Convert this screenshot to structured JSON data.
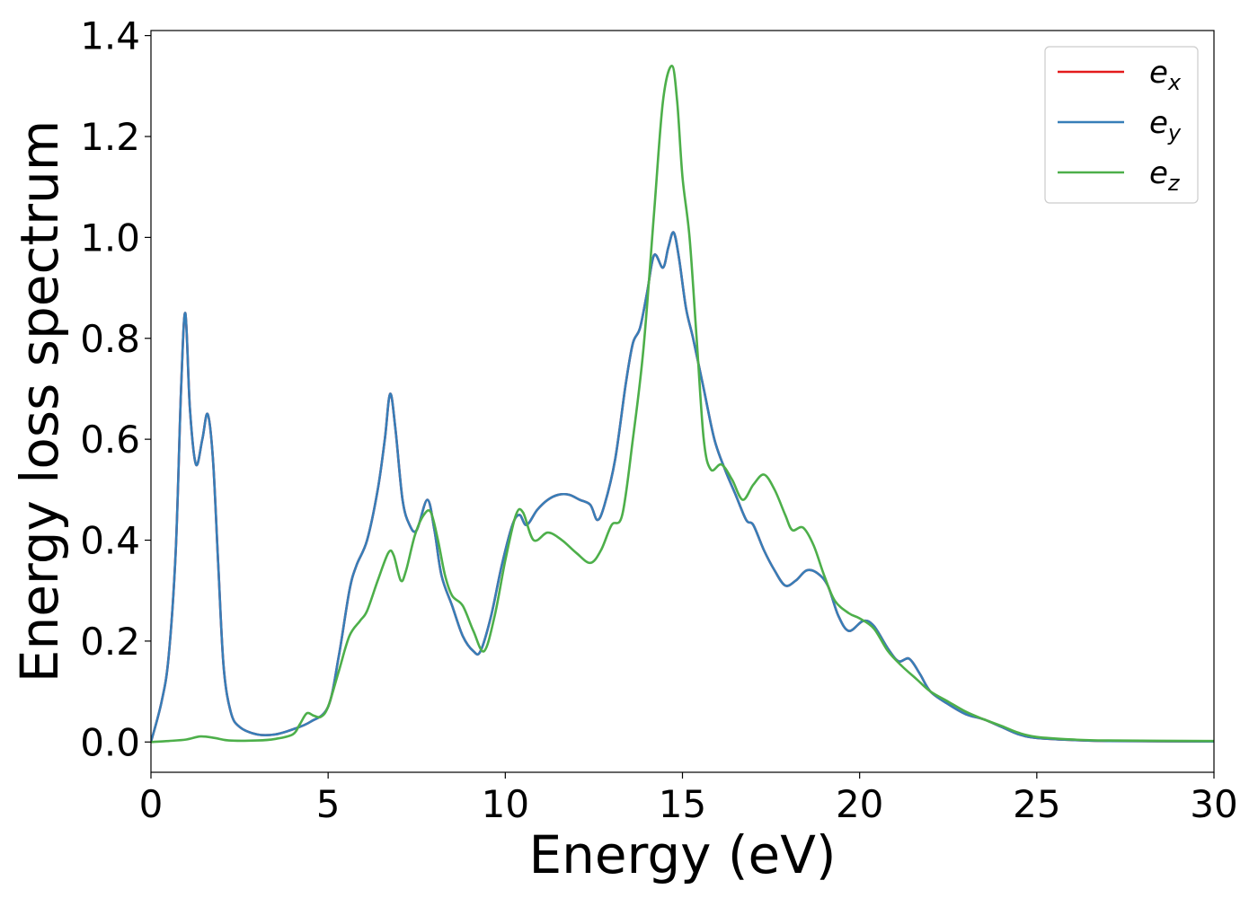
{
  "chart_data": {
    "type": "line",
    "xlabel": "Energy (eV)",
    "ylabel": "Energy loss spectrum",
    "xlim": [
      0,
      30
    ],
    "ylim": [
      -0.06,
      1.41
    ],
    "xticks": [
      0,
      5,
      10,
      15,
      20,
      25,
      30
    ],
    "yticks": [
      0.0,
      0.2,
      0.4,
      0.6,
      0.8,
      1.0,
      1.2,
      1.4
    ],
    "xtick_labels": [
      "0",
      "5",
      "10",
      "15",
      "20",
      "25",
      "30"
    ],
    "ytick_labels": [
      "0.0",
      "0.2",
      "0.4",
      "0.6",
      "0.8",
      "1.0",
      "1.2",
      "1.4"
    ],
    "grid": false,
    "legend_position": "top-right",
    "series": [
      {
        "name": "e_x",
        "label_base": "e",
        "label_sub": "x",
        "color": "#e41a1c",
        "points": [
          [
            0,
            0
          ],
          [
            0.3,
            0.08
          ],
          [
            0.5,
            0.17
          ],
          [
            0.7,
            0.38
          ],
          [
            0.85,
            0.7
          ],
          [
            0.97,
            0.85
          ],
          [
            1.1,
            0.66
          ],
          [
            1.27,
            0.55
          ],
          [
            1.45,
            0.6
          ],
          [
            1.6,
            0.65
          ],
          [
            1.75,
            0.56
          ],
          [
            1.9,
            0.35
          ],
          [
            2.05,
            0.15
          ],
          [
            2.25,
            0.06
          ],
          [
            2.5,
            0.03
          ],
          [
            3.0,
            0.015
          ],
          [
            3.5,
            0.015
          ],
          [
            4.0,
            0.025
          ],
          [
            4.5,
            0.04
          ],
          [
            5.0,
            0.07
          ],
          [
            5.3,
            0.17
          ],
          [
            5.6,
            0.3
          ],
          [
            5.8,
            0.35
          ],
          [
            6.1,
            0.4
          ],
          [
            6.4,
            0.5
          ],
          [
            6.6,
            0.6
          ],
          [
            6.75,
            0.69
          ],
          [
            6.9,
            0.62
          ],
          [
            7.1,
            0.48
          ],
          [
            7.3,
            0.43
          ],
          [
            7.5,
            0.42
          ],
          [
            7.8,
            0.48
          ],
          [
            8.0,
            0.42
          ],
          [
            8.2,
            0.33
          ],
          [
            8.5,
            0.27
          ],
          [
            8.8,
            0.21
          ],
          [
            9.1,
            0.18
          ],
          [
            9.3,
            0.18
          ],
          [
            9.6,
            0.25
          ],
          [
            9.9,
            0.35
          ],
          [
            10.2,
            0.43
          ],
          [
            10.4,
            0.45
          ],
          [
            10.6,
            0.43
          ],
          [
            10.9,
            0.46
          ],
          [
            11.2,
            0.48
          ],
          [
            11.5,
            0.49
          ],
          [
            11.8,
            0.49
          ],
          [
            12.1,
            0.48
          ],
          [
            12.4,
            0.47
          ],
          [
            12.6,
            0.44
          ],
          [
            12.8,
            0.47
          ],
          [
            13.1,
            0.56
          ],
          [
            13.4,
            0.71
          ],
          [
            13.6,
            0.79
          ],
          [
            13.8,
            0.82
          ],
          [
            14.0,
            0.89
          ],
          [
            14.2,
            0.965
          ],
          [
            14.45,
            0.94
          ],
          [
            14.6,
            0.98
          ],
          [
            14.75,
            1.01
          ],
          [
            14.9,
            0.96
          ],
          [
            15.1,
            0.86
          ],
          [
            15.3,
            0.8
          ],
          [
            15.6,
            0.7
          ],
          [
            15.9,
            0.6
          ],
          [
            16.2,
            0.54
          ],
          [
            16.5,
            0.49
          ],
          [
            16.8,
            0.44
          ],
          [
            17.0,
            0.43
          ],
          [
            17.3,
            0.38
          ],
          [
            17.6,
            0.34
          ],
          [
            17.9,
            0.31
          ],
          [
            18.2,
            0.32
          ],
          [
            18.5,
            0.34
          ],
          [
            18.8,
            0.335
          ],
          [
            19.1,
            0.31
          ],
          [
            19.4,
            0.25
          ],
          [
            19.7,
            0.22
          ],
          [
            20.1,
            0.24
          ],
          [
            20.4,
            0.23
          ],
          [
            20.8,
            0.185
          ],
          [
            21.1,
            0.16
          ],
          [
            21.4,
            0.165
          ],
          [
            21.7,
            0.135
          ],
          [
            22.0,
            0.1
          ],
          [
            22.5,
            0.075
          ],
          [
            23.0,
            0.055
          ],
          [
            23.5,
            0.045
          ],
          [
            24.0,
            0.03
          ],
          [
            24.5,
            0.015
          ],
          [
            25.0,
            0.008
          ],
          [
            26.0,
            0.004
          ],
          [
            27.0,
            0.002
          ],
          [
            30.0,
            0.001
          ]
        ]
      },
      {
        "name": "e_y",
        "label_base": "e",
        "label_sub": "y",
        "color": "#377eb8",
        "points": [
          [
            0,
            0
          ],
          [
            0.3,
            0.08
          ],
          [
            0.5,
            0.17
          ],
          [
            0.7,
            0.38
          ],
          [
            0.85,
            0.7
          ],
          [
            0.97,
            0.85
          ],
          [
            1.1,
            0.66
          ],
          [
            1.27,
            0.55
          ],
          [
            1.45,
            0.6
          ],
          [
            1.6,
            0.65
          ],
          [
            1.75,
            0.56
          ],
          [
            1.9,
            0.35
          ],
          [
            2.05,
            0.15
          ],
          [
            2.25,
            0.06
          ],
          [
            2.5,
            0.03
          ],
          [
            3.0,
            0.015
          ],
          [
            3.5,
            0.015
          ],
          [
            4.0,
            0.025
          ],
          [
            4.5,
            0.04
          ],
          [
            5.0,
            0.07
          ],
          [
            5.3,
            0.17
          ],
          [
            5.6,
            0.3
          ],
          [
            5.8,
            0.35
          ],
          [
            6.1,
            0.4
          ],
          [
            6.4,
            0.5
          ],
          [
            6.6,
            0.6
          ],
          [
            6.75,
            0.69
          ],
          [
            6.9,
            0.62
          ],
          [
            7.1,
            0.48
          ],
          [
            7.3,
            0.43
          ],
          [
            7.5,
            0.42
          ],
          [
            7.8,
            0.48
          ],
          [
            8.0,
            0.42
          ],
          [
            8.2,
            0.33
          ],
          [
            8.5,
            0.27
          ],
          [
            8.8,
            0.21
          ],
          [
            9.1,
            0.18
          ],
          [
            9.3,
            0.18
          ],
          [
            9.6,
            0.25
          ],
          [
            9.9,
            0.35
          ],
          [
            10.2,
            0.43
          ],
          [
            10.4,
            0.45
          ],
          [
            10.6,
            0.43
          ],
          [
            10.9,
            0.46
          ],
          [
            11.2,
            0.48
          ],
          [
            11.5,
            0.49
          ],
          [
            11.8,
            0.49
          ],
          [
            12.1,
            0.48
          ],
          [
            12.4,
            0.47
          ],
          [
            12.6,
            0.44
          ],
          [
            12.8,
            0.47
          ],
          [
            13.1,
            0.56
          ],
          [
            13.4,
            0.71
          ],
          [
            13.6,
            0.79
          ],
          [
            13.8,
            0.82
          ],
          [
            14.0,
            0.89
          ],
          [
            14.2,
            0.965
          ],
          [
            14.45,
            0.94
          ],
          [
            14.6,
            0.98
          ],
          [
            14.75,
            1.01
          ],
          [
            14.9,
            0.96
          ],
          [
            15.1,
            0.86
          ],
          [
            15.3,
            0.8
          ],
          [
            15.6,
            0.7
          ],
          [
            15.9,
            0.6
          ],
          [
            16.2,
            0.54
          ],
          [
            16.5,
            0.49
          ],
          [
            16.8,
            0.44
          ],
          [
            17.0,
            0.43
          ],
          [
            17.3,
            0.38
          ],
          [
            17.6,
            0.34
          ],
          [
            17.9,
            0.31
          ],
          [
            18.2,
            0.32
          ],
          [
            18.5,
            0.34
          ],
          [
            18.8,
            0.335
          ],
          [
            19.1,
            0.31
          ],
          [
            19.4,
            0.25
          ],
          [
            19.7,
            0.22
          ],
          [
            20.1,
            0.24
          ],
          [
            20.4,
            0.23
          ],
          [
            20.8,
            0.185
          ],
          [
            21.1,
            0.16
          ],
          [
            21.4,
            0.165
          ],
          [
            21.7,
            0.135
          ],
          [
            22.0,
            0.1
          ],
          [
            22.5,
            0.075
          ],
          [
            23.0,
            0.055
          ],
          [
            23.5,
            0.045
          ],
          [
            24.0,
            0.03
          ],
          [
            24.5,
            0.015
          ],
          [
            25.0,
            0.008
          ],
          [
            26.0,
            0.004
          ],
          [
            27.0,
            0.002
          ],
          [
            30.0,
            0.001
          ]
        ]
      },
      {
        "name": "e_z",
        "label_base": "e",
        "label_sub": "z",
        "color": "#4daf4a",
        "points": [
          [
            0,
            0
          ],
          [
            0.5,
            0.002
          ],
          [
            1.0,
            0.005
          ],
          [
            1.4,
            0.011
          ],
          [
            1.8,
            0.008
          ],
          [
            2.2,
            0.003
          ],
          [
            3.0,
            0.003
          ],
          [
            3.5,
            0.006
          ],
          [
            4.0,
            0.015
          ],
          [
            4.2,
            0.035
          ],
          [
            4.4,
            0.057
          ],
          [
            4.6,
            0.052
          ],
          [
            4.8,
            0.05
          ],
          [
            5.0,
            0.07
          ],
          [
            5.3,
            0.14
          ],
          [
            5.6,
            0.21
          ],
          [
            5.9,
            0.24
          ],
          [
            6.1,
            0.26
          ],
          [
            6.4,
            0.32
          ],
          [
            6.7,
            0.375
          ],
          [
            6.85,
            0.37
          ],
          [
            7.05,
            0.32
          ],
          [
            7.2,
            0.34
          ],
          [
            7.45,
            0.41
          ],
          [
            7.7,
            0.45
          ],
          [
            7.9,
            0.455
          ],
          [
            8.1,
            0.4
          ],
          [
            8.3,
            0.33
          ],
          [
            8.5,
            0.29
          ],
          [
            8.8,
            0.27
          ],
          [
            9.1,
            0.22
          ],
          [
            9.4,
            0.18
          ],
          [
            9.7,
            0.25
          ],
          [
            10.0,
            0.36
          ],
          [
            10.3,
            0.45
          ],
          [
            10.5,
            0.455
          ],
          [
            10.8,
            0.4
          ],
          [
            11.2,
            0.415
          ],
          [
            11.6,
            0.4
          ],
          [
            12.0,
            0.375
          ],
          [
            12.4,
            0.355
          ],
          [
            12.7,
            0.38
          ],
          [
            13.0,
            0.43
          ],
          [
            13.3,
            0.45
          ],
          [
            13.6,
            0.6
          ],
          [
            13.9,
            0.78
          ],
          [
            14.2,
            1.05
          ],
          [
            14.45,
            1.27
          ],
          [
            14.7,
            1.34
          ],
          [
            14.85,
            1.27
          ],
          [
            15.0,
            1.12
          ],
          [
            15.2,
            1.0
          ],
          [
            15.4,
            0.8
          ],
          [
            15.6,
            0.6
          ],
          [
            15.8,
            0.54
          ],
          [
            16.1,
            0.55
          ],
          [
            16.4,
            0.52
          ],
          [
            16.7,
            0.48
          ],
          [
            17.0,
            0.51
          ],
          [
            17.3,
            0.53
          ],
          [
            17.6,
            0.5
          ],
          [
            17.9,
            0.45
          ],
          [
            18.1,
            0.42
          ],
          [
            18.4,
            0.425
          ],
          [
            18.7,
            0.39
          ],
          [
            19.0,
            0.33
          ],
          [
            19.3,
            0.28
          ],
          [
            19.7,
            0.255
          ],
          [
            20.0,
            0.245
          ],
          [
            20.4,
            0.225
          ],
          [
            20.8,
            0.18
          ],
          [
            21.2,
            0.15
          ],
          [
            21.6,
            0.125
          ],
          [
            22.0,
            0.1
          ],
          [
            22.5,
            0.08
          ],
          [
            23.0,
            0.06
          ],
          [
            23.5,
            0.045
          ],
          [
            24.0,
            0.032
          ],
          [
            24.5,
            0.018
          ],
          [
            25.0,
            0.01
          ],
          [
            26.0,
            0.005
          ],
          [
            27.0,
            0.003
          ],
          [
            30.0,
            0.002
          ]
        ]
      }
    ]
  }
}
